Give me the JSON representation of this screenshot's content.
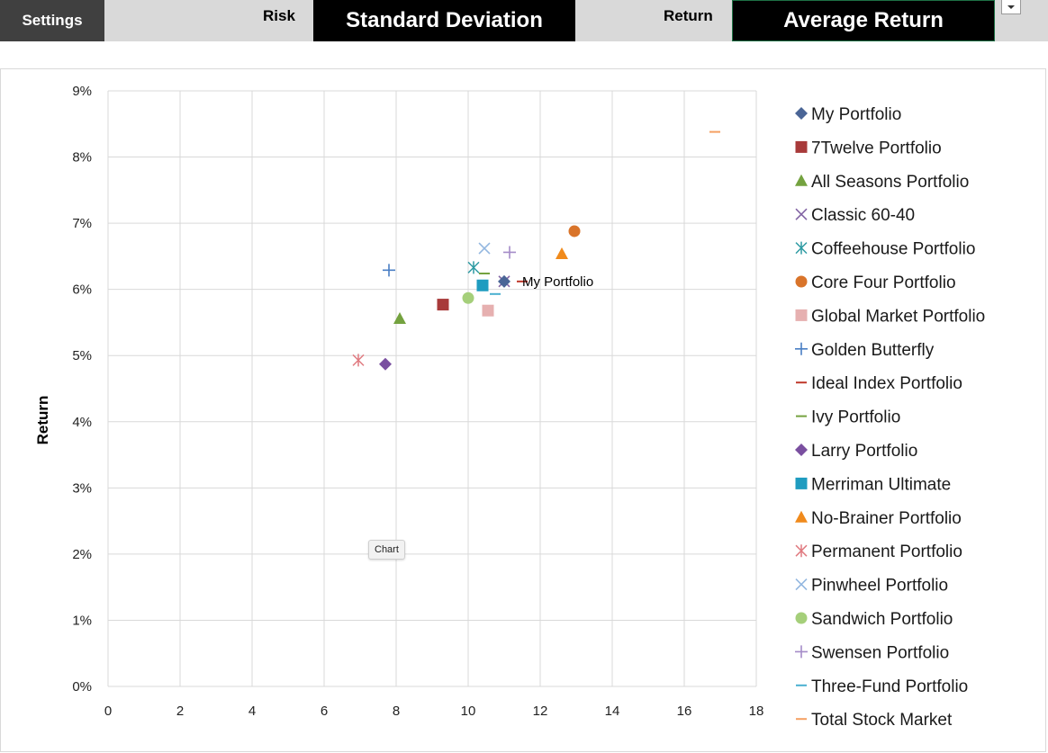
{
  "toolbar": {
    "settings_label": "Settings",
    "risk_label": "Risk",
    "risk_value": "Standard Deviation",
    "return_label": "Return",
    "return_value": "Average Return",
    "dropdown_icon": "chevron-down-icon"
  },
  "tooltip": {
    "text": "Chart"
  },
  "chart_data": {
    "type": "scatter",
    "title": "",
    "xlabel": "",
    "ylabel": "Return",
    "xlim": [
      0,
      18
    ],
    "ylim": [
      0,
      9
    ],
    "x_ticks": [
      "0",
      "2",
      "4",
      "6",
      "8",
      "10",
      "12",
      "14",
      "16",
      "18"
    ],
    "y_ticks": [
      "0%",
      "1%",
      "2%",
      "3%",
      "4%",
      "5%",
      "6%",
      "7%",
      "8%",
      "9%"
    ],
    "grid": true,
    "legend_position": "right",
    "point_label": {
      "text": "My Portfolio",
      "x": 11.0,
      "y": 6.12
    },
    "series": [
      {
        "name": "My Portfolio",
        "marker": "diamond",
        "color": "#4a6596",
        "x": 11.0,
        "y": 6.12
      },
      {
        "name": "7Twelve Portfolio",
        "marker": "square",
        "color": "#a83a3a",
        "x": 9.3,
        "y": 5.77
      },
      {
        "name": "All Seasons Portfolio",
        "marker": "triangle",
        "color": "#74a23f",
        "x": 8.1,
        "y": 5.56
      },
      {
        "name": "Classic 60-40",
        "marker": "x",
        "color": "#8264a4",
        "x": 11.0,
        "y": 6.12
      },
      {
        "name": "Coffeehouse Portfolio",
        "marker": "asterisk",
        "color": "#2e9ba3",
        "x": 10.15,
        "y": 6.33
      },
      {
        "name": "Core Four Portfolio",
        "marker": "circle",
        "color": "#d9742a",
        "x": 12.95,
        "y": 6.88
      },
      {
        "name": "Global Market Portfolio",
        "marker": "square",
        "color": "#e6b0b0",
        "x": 10.55,
        "y": 5.68
      },
      {
        "name": "Golden Butterfly",
        "marker": "plus",
        "color": "#4a7fc4",
        "x": 7.8,
        "y": 6.29
      },
      {
        "name": "Ideal Index Portfolio",
        "marker": "dash",
        "color": "#c0392b",
        "x": 11.5,
        "y": 6.12
      },
      {
        "name": "Ivy Portfolio",
        "marker": "dash",
        "color": "#74a23f",
        "x": 10.45,
        "y": 6.24
      },
      {
        "name": "Larry Portfolio",
        "marker": "diamond",
        "color": "#7a4fa0",
        "x": 7.7,
        "y": 4.87
      },
      {
        "name": "Merriman Ultimate",
        "marker": "square",
        "color": "#1f9cc0",
        "x": 10.4,
        "y": 6.06
      },
      {
        "name": "No-Brainer Portfolio",
        "marker": "triangle",
        "color": "#f08a1c",
        "x": 12.6,
        "y": 6.54
      },
      {
        "name": "Permanent Portfolio",
        "marker": "asterisk",
        "color": "#e07a80",
        "x": 6.95,
        "y": 4.93
      },
      {
        "name": "Pinwheel Portfolio",
        "marker": "x",
        "color": "#93b7e0",
        "x": 10.45,
        "y": 6.62
      },
      {
        "name": "Sandwich Portfolio",
        "marker": "circle",
        "color": "#a5cf7a",
        "x": 10.0,
        "y": 5.87
      },
      {
        "name": "Swensen Portfolio",
        "marker": "plus",
        "color": "#a58cc8",
        "x": 11.15,
        "y": 6.56
      },
      {
        "name": "Three-Fund Portfolio",
        "marker": "dash",
        "color": "#4ab0d0",
        "x": 10.75,
        "y": 5.93
      },
      {
        "name": "Total Stock Market",
        "marker": "dash",
        "color": "#f5a062",
        "x": 16.85,
        "y": 8.38
      }
    ]
  }
}
